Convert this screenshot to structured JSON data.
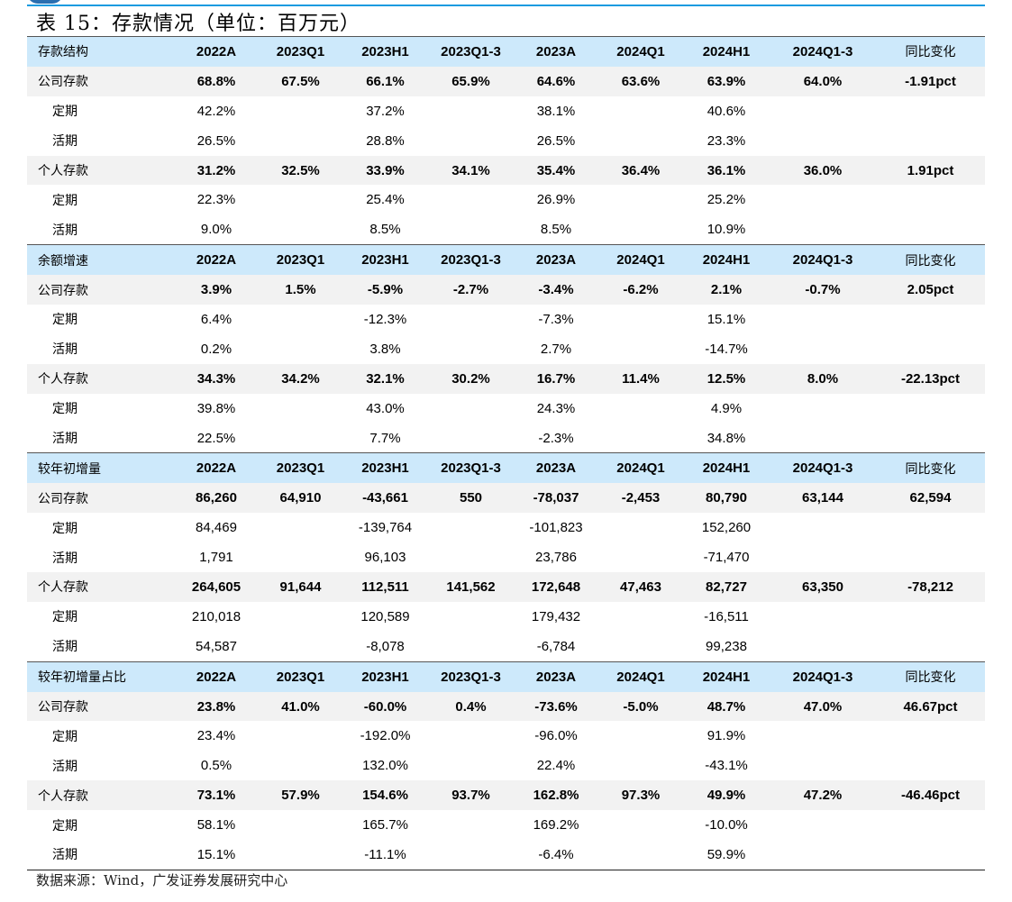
{
  "title": "表 15：存款情况（单位：百万元）",
  "columns": [
    "2022A",
    "2023Q1",
    "2023H1",
    "2023Q1-3",
    "2023A",
    "2024Q1",
    "2024H1",
    "2024Q1-3",
    "同比变化"
  ],
  "colors": {
    "header_bg": "#cde9fb",
    "main_row_bg": "#f2f2f2",
    "accent_line": "#1a9be0"
  },
  "sections": [
    {
      "label": "存款结构",
      "rows": [
        {
          "label": "公司存款",
          "type": "main",
          "values": [
            "68.8%",
            "67.5%",
            "66.1%",
            "65.9%",
            "64.6%",
            "63.6%",
            "63.9%",
            "64.0%",
            "-1.91pct"
          ]
        },
        {
          "label": "定期",
          "type": "sub",
          "values": [
            "42.2%",
            "",
            "37.2%",
            "",
            "38.1%",
            "",
            "40.6%",
            "",
            ""
          ]
        },
        {
          "label": "活期",
          "type": "sub",
          "values": [
            "26.5%",
            "",
            "28.8%",
            "",
            "26.5%",
            "",
            "23.3%",
            "",
            ""
          ]
        },
        {
          "label": "个人存款",
          "type": "main",
          "values": [
            "31.2%",
            "32.5%",
            "33.9%",
            "34.1%",
            "35.4%",
            "36.4%",
            "36.1%",
            "36.0%",
            "1.91pct"
          ]
        },
        {
          "label": "定期",
          "type": "sub",
          "values": [
            "22.3%",
            "",
            "25.4%",
            "",
            "26.9%",
            "",
            "25.2%",
            "",
            ""
          ]
        },
        {
          "label": "活期",
          "type": "sub",
          "values": [
            "9.0%",
            "",
            "8.5%",
            "",
            "8.5%",
            "",
            "10.9%",
            "",
            ""
          ]
        }
      ]
    },
    {
      "label": "余额增速",
      "rows": [
        {
          "label": "公司存款",
          "type": "main",
          "values": [
            "3.9%",
            "1.5%",
            "-5.9%",
            "-2.7%",
            "-3.4%",
            "-6.2%",
            "2.1%",
            "-0.7%",
            "2.05pct"
          ]
        },
        {
          "label": "定期",
          "type": "sub",
          "values": [
            "6.4%",
            "",
            "-12.3%",
            "",
            "-7.3%",
            "",
            "15.1%",
            "",
            ""
          ]
        },
        {
          "label": "活期",
          "type": "sub",
          "values": [
            "0.2%",
            "",
            "3.8%",
            "",
            "2.7%",
            "",
            "-14.7%",
            "",
            ""
          ]
        },
        {
          "label": "个人存款",
          "type": "main",
          "values": [
            "34.3%",
            "34.2%",
            "32.1%",
            "30.2%",
            "16.7%",
            "11.4%",
            "12.5%",
            "8.0%",
            "-22.13pct"
          ]
        },
        {
          "label": "定期",
          "type": "sub",
          "values": [
            "39.8%",
            "",
            "43.0%",
            "",
            "24.3%",
            "",
            "4.9%",
            "",
            ""
          ]
        },
        {
          "label": "活期",
          "type": "sub",
          "values": [
            "22.5%",
            "",
            "7.7%",
            "",
            "-2.3%",
            "",
            "34.8%",
            "",
            ""
          ]
        }
      ]
    },
    {
      "label": "较年初增量",
      "rows": [
        {
          "label": "公司存款",
          "type": "main",
          "values": [
            "86,260",
            "64,910",
            "-43,661",
            "550",
            "-78,037",
            "-2,453",
            "80,790",
            "63,144",
            "62,594"
          ]
        },
        {
          "label": "定期",
          "type": "sub",
          "values": [
            "84,469",
            "",
            "-139,764",
            "",
            "-101,823",
            "",
            "152,260",
            "",
            ""
          ]
        },
        {
          "label": "活期",
          "type": "sub",
          "values": [
            "1,791",
            "",
            "96,103",
            "",
            "23,786",
            "",
            "-71,470",
            "",
            ""
          ]
        },
        {
          "label": "个人存款",
          "type": "main",
          "values": [
            "264,605",
            "91,644",
            "112,511",
            "141,562",
            "172,648",
            "47,463",
            "82,727",
            "63,350",
            "-78,212"
          ]
        },
        {
          "label": "定期",
          "type": "sub",
          "values": [
            "210,018",
            "",
            "120,589",
            "",
            "179,432",
            "",
            "-16,511",
            "",
            ""
          ]
        },
        {
          "label": "活期",
          "type": "sub",
          "values": [
            "54,587",
            "",
            "-8,078",
            "",
            "-6,784",
            "",
            "99,238",
            "",
            ""
          ]
        }
      ]
    },
    {
      "label": "较年初增量占比",
      "rows": [
        {
          "label": "公司存款",
          "type": "main",
          "values": [
            "23.8%",
            "41.0%",
            "-60.0%",
            "0.4%",
            "-73.6%",
            "-5.0%",
            "48.7%",
            "47.0%",
            "46.67pct"
          ]
        },
        {
          "label": "定期",
          "type": "sub",
          "values": [
            "23.4%",
            "",
            "-192.0%",
            "",
            "-96.0%",
            "",
            "91.9%",
            "",
            ""
          ]
        },
        {
          "label": "活期",
          "type": "sub",
          "values": [
            "0.5%",
            "",
            "132.0%",
            "",
            "22.4%",
            "",
            "-43.1%",
            "",
            ""
          ]
        },
        {
          "label": "个人存款",
          "type": "main",
          "values": [
            "73.1%",
            "57.9%",
            "154.6%",
            "93.7%",
            "162.8%",
            "97.3%",
            "49.9%",
            "47.2%",
            "-46.46pct"
          ]
        },
        {
          "label": "定期",
          "type": "sub",
          "values": [
            "58.1%",
            "",
            "165.7%",
            "",
            "169.2%",
            "",
            "-10.0%",
            "",
            ""
          ]
        },
        {
          "label": "活期",
          "type": "sub",
          "values": [
            "15.1%",
            "",
            "-11.1%",
            "",
            "-6.4%",
            "",
            "59.9%",
            "",
            ""
          ]
        }
      ]
    }
  ],
  "source": "数据来源：Wind，广发证券发展研究中心"
}
